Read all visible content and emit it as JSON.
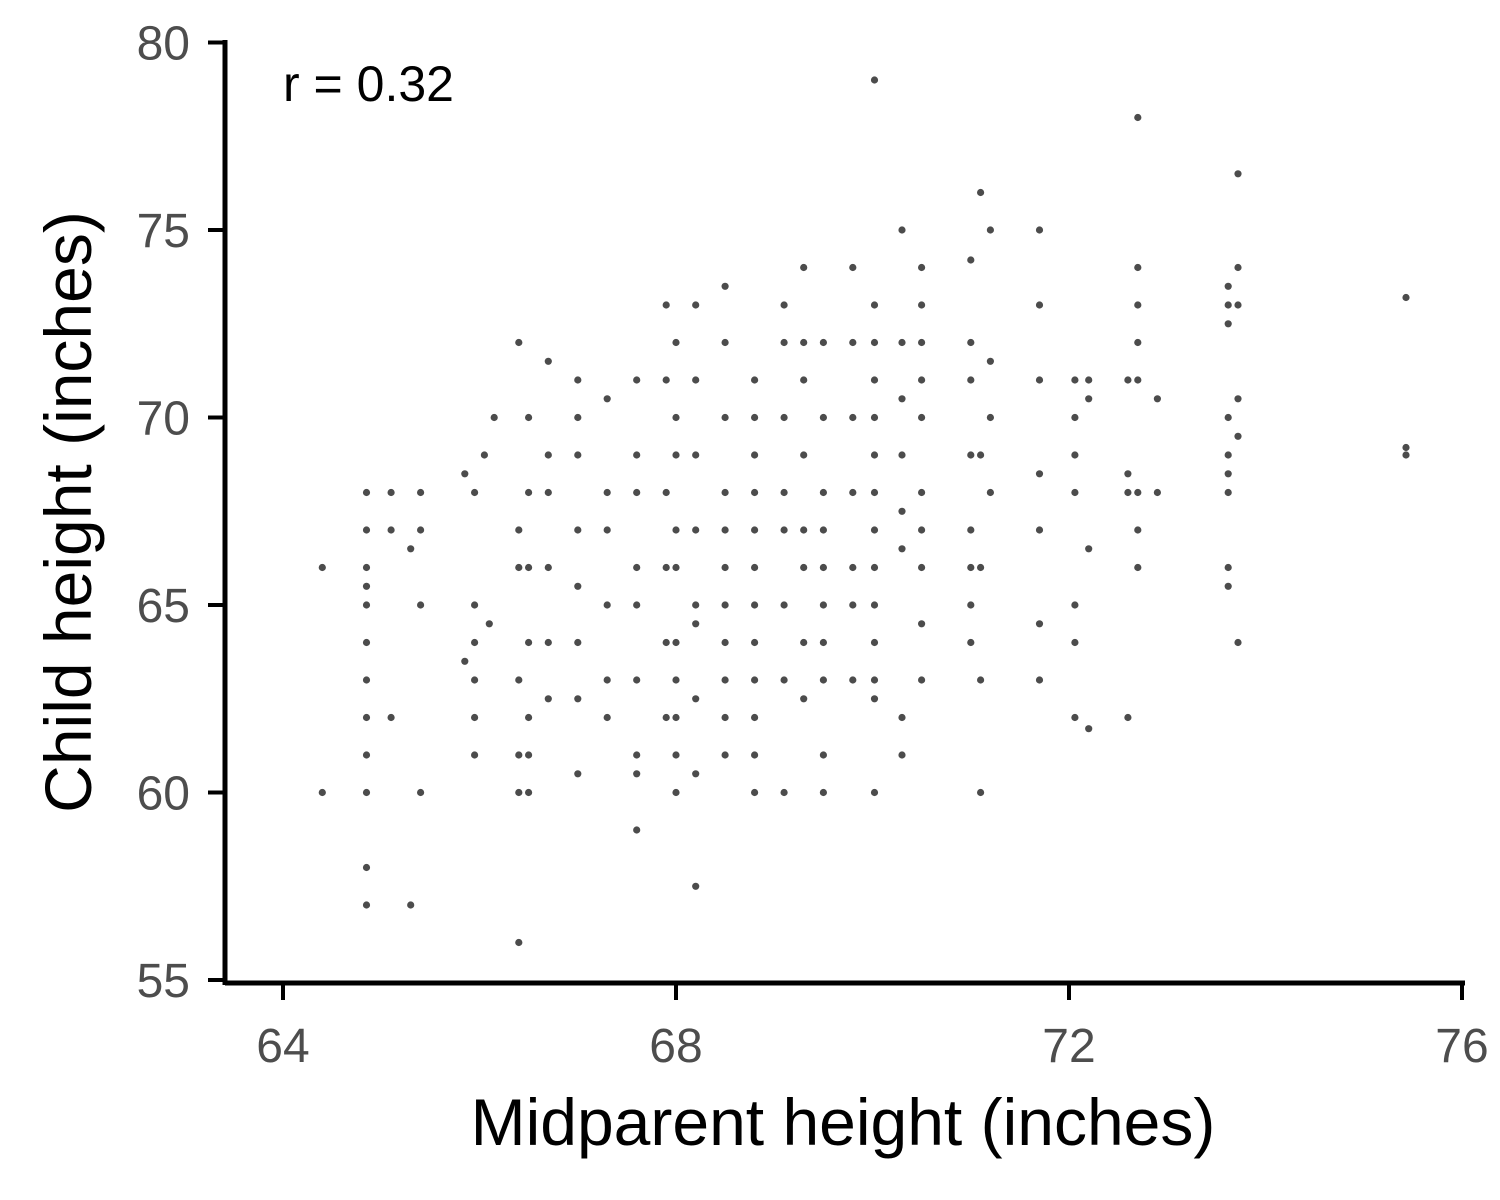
{
  "chart_data": {
    "type": "scatter",
    "title": "",
    "xlabel": "Midparent height (inches)",
    "ylabel": "Child height (inches)",
    "xlim": [
      63.5,
      75.8
    ],
    "ylim": [
      54.8,
      80
    ],
    "x_ticks": [
      64,
      68,
      72,
      76
    ],
    "y_ticks": [
      55,
      60,
      65,
      70,
      75,
      80
    ],
    "x_tick_labels": [
      "64",
      "68",
      "72",
      "76"
    ],
    "y_tick_labels": [
      "55",
      "60",
      "65",
      "70",
      "75",
      "80"
    ],
    "annotation": "r =  0.32",
    "grid": false,
    "legend": "none",
    "point_color": "#000000",
    "series": [
      {
        "points": [
          [
            75.43,
            73.2
          ],
          [
            75.43,
            69.2
          ],
          [
            75.43,
            69.0
          ],
          [
            73.72,
            76.5
          ],
          [
            73.72,
            74.0
          ],
          [
            73.72,
            73.0
          ],
          [
            73.72,
            70.5
          ],
          [
            73.72,
            69.5
          ],
          [
            73.72,
            64.0
          ],
          [
            73.62,
            73.5
          ],
          [
            73.62,
            73.0
          ],
          [
            73.62,
            72.5
          ],
          [
            73.62,
            70.0
          ],
          [
            73.62,
            69.0
          ],
          [
            73.62,
            68.5
          ],
          [
            73.62,
            68.0
          ],
          [
            73.62,
            66.0
          ],
          [
            73.62,
            65.5
          ],
          [
            72.7,
            78.0
          ],
          [
            72.7,
            74.0
          ],
          [
            72.7,
            73.0
          ],
          [
            72.7,
            72.0
          ],
          [
            72.7,
            71.0
          ],
          [
            72.7,
            67.0
          ],
          [
            72.7,
            68.0
          ],
          [
            72.7,
            66.0
          ],
          [
            72.6,
            71.0
          ],
          [
            72.6,
            68.5
          ],
          [
            72.6,
            68.0
          ],
          [
            72.6,
            62.0
          ],
          [
            72.9,
            70.5
          ],
          [
            72.9,
            68.0
          ],
          [
            72.06,
            71.0
          ],
          [
            72.06,
            70.0
          ],
          [
            72.06,
            69.0
          ],
          [
            72.06,
            68.0
          ],
          [
            72.06,
            65.0
          ],
          [
            72.06,
            64.0
          ],
          [
            72.06,
            62.0
          ],
          [
            71.7,
            71.0
          ],
          [
            71.7,
            68.5
          ],
          [
            71.7,
            67.0
          ],
          [
            71.7,
            64.5
          ],
          [
            71.7,
            63.0
          ],
          [
            72.2,
            71.0
          ],
          [
            72.2,
            70.5
          ],
          [
            72.2,
            66.5
          ],
          [
            72.2,
            61.7
          ],
          [
            71.7,
            75.0
          ],
          [
            71.7,
            73.0
          ],
          [
            71.2,
            75.0
          ],
          [
            71.2,
            71.5
          ],
          [
            71.2,
            70.0
          ],
          [
            71.2,
            68.0
          ],
          [
            71.0,
            74.2
          ],
          [
            71.0,
            72.0
          ],
          [
            71.0,
            71.0
          ],
          [
            71.0,
            69.0
          ],
          [
            71.0,
            67.0
          ],
          [
            71.0,
            66.0
          ],
          [
            71.0,
            65.0
          ],
          [
            71.0,
            64.0
          ],
          [
            71.1,
            76.0
          ],
          [
            71.1,
            69.0
          ],
          [
            71.1,
            66.0
          ],
          [
            71.1,
            63.0
          ],
          [
            71.1,
            60.0
          ],
          [
            70.5,
            74.0
          ],
          [
            70.5,
            73.0
          ],
          [
            70.5,
            72.0
          ],
          [
            70.5,
            71.0
          ],
          [
            70.5,
            70.0
          ],
          [
            70.5,
            68.0
          ],
          [
            70.5,
            67.0
          ],
          [
            70.5,
            66.0
          ],
          [
            70.5,
            64.5
          ],
          [
            70.5,
            63.0
          ],
          [
            70.3,
            75.0
          ],
          [
            70.3,
            72.0
          ],
          [
            70.3,
            70.5
          ],
          [
            70.3,
            69.0
          ],
          [
            70.3,
            67.5
          ],
          [
            70.3,
            66.5
          ],
          [
            70.3,
            62.0
          ],
          [
            70.3,
            61.0
          ],
          [
            70.02,
            79.0
          ],
          [
            70.02,
            73.0
          ],
          [
            70.02,
            72.0
          ],
          [
            70.02,
            71.0
          ],
          [
            70.02,
            70.0
          ],
          [
            70.02,
            69.0
          ],
          [
            70.02,
            68.0
          ],
          [
            70.02,
            67.0
          ],
          [
            70.02,
            66.0
          ],
          [
            70.02,
            65.0
          ],
          [
            70.02,
            64.0
          ],
          [
            70.02,
            63.0
          ],
          [
            70.02,
            62.5
          ],
          [
            70.02,
            60.0
          ],
          [
            69.8,
            74.0
          ],
          [
            69.8,
            72.0
          ],
          [
            69.8,
            70.0
          ],
          [
            69.8,
            68.0
          ],
          [
            69.8,
            66.0
          ],
          [
            69.8,
            65.0
          ],
          [
            69.8,
            63.0
          ],
          [
            69.5,
            72.0
          ],
          [
            69.5,
            70.0
          ],
          [
            69.5,
            68.0
          ],
          [
            69.5,
            67.0
          ],
          [
            69.5,
            66.0
          ],
          [
            69.5,
            65.0
          ],
          [
            69.5,
            64.0
          ],
          [
            69.5,
            63.0
          ],
          [
            69.5,
            61.0
          ],
          [
            69.5,
            60.0
          ],
          [
            69.3,
            74.0
          ],
          [
            69.3,
            72.0
          ],
          [
            69.3,
            71.0
          ],
          [
            69.3,
            69.0
          ],
          [
            69.3,
            67.0
          ],
          [
            69.3,
            66.0
          ],
          [
            69.3,
            64.0
          ],
          [
            69.3,
            62.5
          ],
          [
            69.1,
            73.0
          ],
          [
            69.1,
            72.0
          ],
          [
            69.1,
            70.0
          ],
          [
            69.1,
            68.0
          ],
          [
            69.1,
            67.0
          ],
          [
            69.1,
            65.0
          ],
          [
            69.1,
            63.0
          ],
          [
            69.1,
            60.0
          ],
          [
            68.8,
            71.0
          ],
          [
            68.8,
            70.0
          ],
          [
            68.8,
            69.0
          ],
          [
            68.8,
            68.0
          ],
          [
            68.8,
            67.0
          ],
          [
            68.8,
            66.0
          ],
          [
            68.8,
            65.0
          ],
          [
            68.8,
            64.0
          ],
          [
            68.8,
            63.0
          ],
          [
            68.8,
            62.0
          ],
          [
            68.8,
            61.0
          ],
          [
            68.8,
            60.0
          ],
          [
            68.5,
            73.5
          ],
          [
            68.5,
            72.0
          ],
          [
            68.5,
            70.0
          ],
          [
            68.5,
            68.0
          ],
          [
            68.5,
            67.0
          ],
          [
            68.5,
            66.0
          ],
          [
            68.5,
            65.0
          ],
          [
            68.5,
            64.0
          ],
          [
            68.5,
            63.0
          ],
          [
            68.5,
            62.0
          ],
          [
            68.5,
            61.0
          ],
          [
            68.2,
            73.0
          ],
          [
            68.2,
            71.0
          ],
          [
            68.2,
            69.0
          ],
          [
            68.2,
            67.0
          ],
          [
            68.2,
            65.0
          ],
          [
            68.2,
            64.5
          ],
          [
            68.2,
            62.5
          ],
          [
            68.2,
            60.5
          ],
          [
            68.2,
            57.5
          ],
          [
            68.0,
            72.0
          ],
          [
            68.0,
            70.0
          ],
          [
            68.0,
            69.0
          ],
          [
            68.0,
            67.0
          ],
          [
            68.0,
            66.0
          ],
          [
            68.0,
            64.0
          ],
          [
            68.0,
            63.0
          ],
          [
            68.0,
            62.0
          ],
          [
            68.0,
            61.0
          ],
          [
            68.0,
            60.0
          ],
          [
            67.9,
            73.0
          ],
          [
            67.9,
            71.0
          ],
          [
            67.9,
            68.0
          ],
          [
            67.9,
            66.0
          ],
          [
            67.9,
            64.0
          ],
          [
            67.9,
            62.0
          ],
          [
            67.6,
            71.0
          ],
          [
            67.6,
            69.0
          ],
          [
            67.6,
            68.0
          ],
          [
            67.6,
            66.0
          ],
          [
            67.6,
            65.0
          ],
          [
            67.6,
            63.0
          ],
          [
            67.6,
            61.0
          ],
          [
            67.6,
            60.5
          ],
          [
            67.6,
            59.0
          ],
          [
            67.3,
            70.5
          ],
          [
            67.3,
            68.0
          ],
          [
            67.3,
            67.0
          ],
          [
            67.3,
            65.0
          ],
          [
            67.3,
            63.0
          ],
          [
            67.3,
            62.0
          ],
          [
            67.0,
            71.0
          ],
          [
            67.0,
            70.0
          ],
          [
            67.0,
            69.0
          ],
          [
            67.0,
            67.0
          ],
          [
            67.0,
            65.5
          ],
          [
            67.0,
            64.0
          ],
          [
            67.0,
            62.5
          ],
          [
            67.0,
            60.5
          ],
          [
            66.7,
            71.5
          ],
          [
            66.7,
            69.0
          ],
          [
            66.7,
            68.0
          ],
          [
            66.7,
            66.0
          ],
          [
            66.7,
            64.0
          ],
          [
            66.7,
            62.5
          ],
          [
            66.5,
            70.0
          ],
          [
            66.5,
            68.0
          ],
          [
            66.5,
            66.0
          ],
          [
            66.5,
            64.0
          ],
          [
            66.5,
            62.0
          ],
          [
            66.5,
            61.0
          ],
          [
            66.5,
            60.0
          ],
          [
            66.4,
            72.0
          ],
          [
            66.4,
            67.0
          ],
          [
            66.4,
            66.0
          ],
          [
            66.4,
            63.0
          ],
          [
            66.4,
            61.0
          ],
          [
            66.4,
            60.0
          ],
          [
            66.4,
            56.0
          ],
          [
            66.15,
            70.0
          ],
          [
            66.05,
            69.0
          ],
          [
            65.85,
            68.5
          ],
          [
            65.85,
            63.5
          ],
          [
            65.95,
            68.0
          ],
          [
            65.95,
            65.0
          ],
          [
            65.95,
            64.0
          ],
          [
            65.95,
            63.0
          ],
          [
            65.95,
            62.0
          ],
          [
            65.95,
            61.0
          ],
          [
            66.1,
            64.5
          ],
          [
            65.4,
            68.0
          ],
          [
            65.4,
            67.0
          ],
          [
            65.4,
            65.0
          ],
          [
            65.4,
            60.0
          ],
          [
            65.3,
            66.5
          ],
          [
            65.3,
            57.0
          ],
          [
            65.1,
            68.0
          ],
          [
            65.1,
            67.0
          ],
          [
            65.1,
            62.0
          ],
          [
            64.85,
            68.0
          ],
          [
            64.85,
            67.0
          ],
          [
            64.85,
            66.0
          ],
          [
            64.85,
            65.5
          ],
          [
            64.85,
            65.0
          ],
          [
            64.85,
            64.0
          ],
          [
            64.85,
            63.0
          ],
          [
            64.85,
            62.0
          ],
          [
            64.85,
            61.0
          ],
          [
            64.85,
            60.0
          ],
          [
            64.85,
            58.0
          ],
          [
            64.85,
            57.0
          ],
          [
            64.4,
            66.0
          ],
          [
            64.4,
            60.0
          ]
        ]
      }
    ]
  }
}
